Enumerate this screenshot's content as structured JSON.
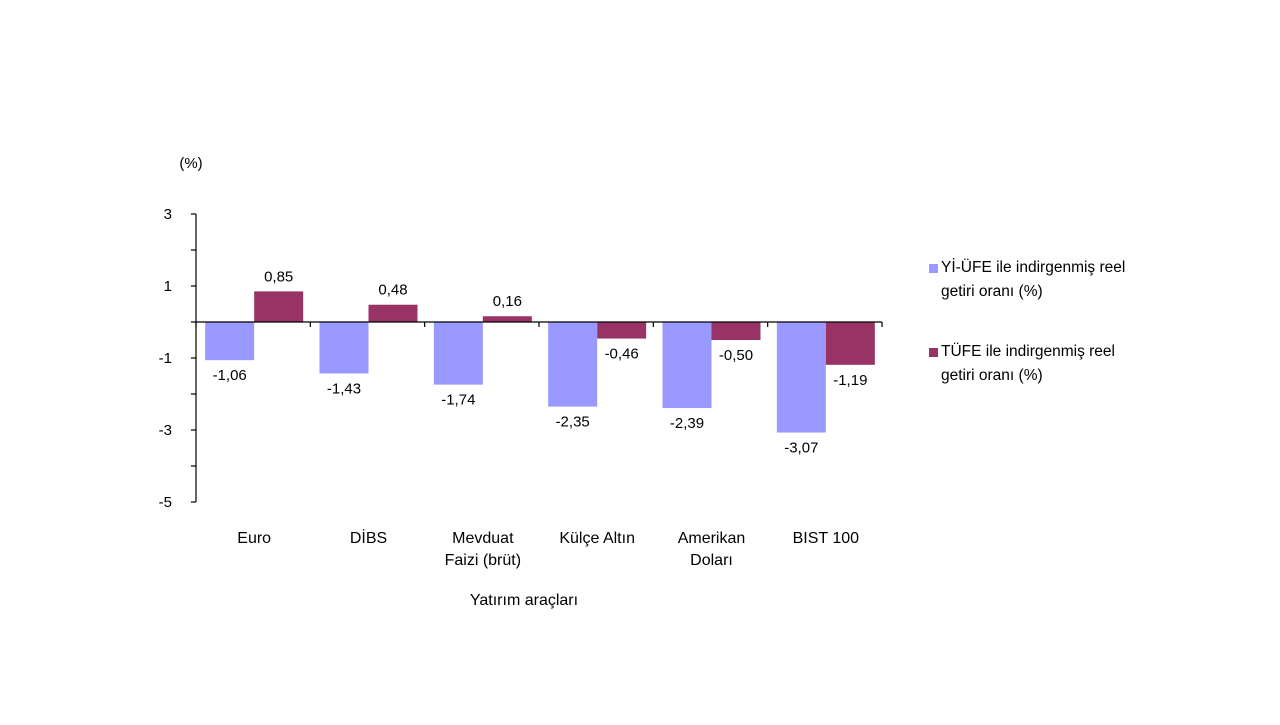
{
  "chart_data": {
    "type": "bar",
    "unit_label": "(%)",
    "xlabel": "Yatırım araçları",
    "ylabel": "",
    "ylim": [
      -5,
      3
    ],
    "y_ticks": [
      3,
      1,
      -1,
      -3,
      -5
    ],
    "y_tick_labels": [
      "3",
      "1",
      "-1",
      "-3",
      "-5"
    ],
    "grid": false,
    "legend_position": "right",
    "categories": [
      [
        "Euro"
      ],
      [
        "DİBS"
      ],
      [
        "Mevduat",
        "Faizi (brüt)"
      ],
      [
        "Külçe Altın"
      ],
      [
        "Amerikan",
        "Doları"
      ],
      [
        "BIST 100"
      ]
    ],
    "series": [
      {
        "name": [
          "Yİ-ÜFE ile indirgenmiş reel",
          "getiri oranı (%)"
        ],
        "color": "#9999ff",
        "values": [
          -1.06,
          -1.43,
          -1.74,
          -2.35,
          -2.39,
          -3.07
        ],
        "labels": [
          "-1,06",
          "-1,43",
          "-1,74",
          "-2,35",
          "-2,39",
          "-3,07"
        ]
      },
      {
        "name": [
          "TÜFE ile indirgenmiş reel",
          "getiri oranı (%)"
        ],
        "color": "#993366",
        "values": [
          0.85,
          0.48,
          0.16,
          -0.46,
          -0.5,
          -1.19
        ],
        "labels": [
          "0,85",
          "0,48",
          "0,16",
          "-0,46",
          "-0,50",
          "-1,19"
        ]
      }
    ]
  }
}
